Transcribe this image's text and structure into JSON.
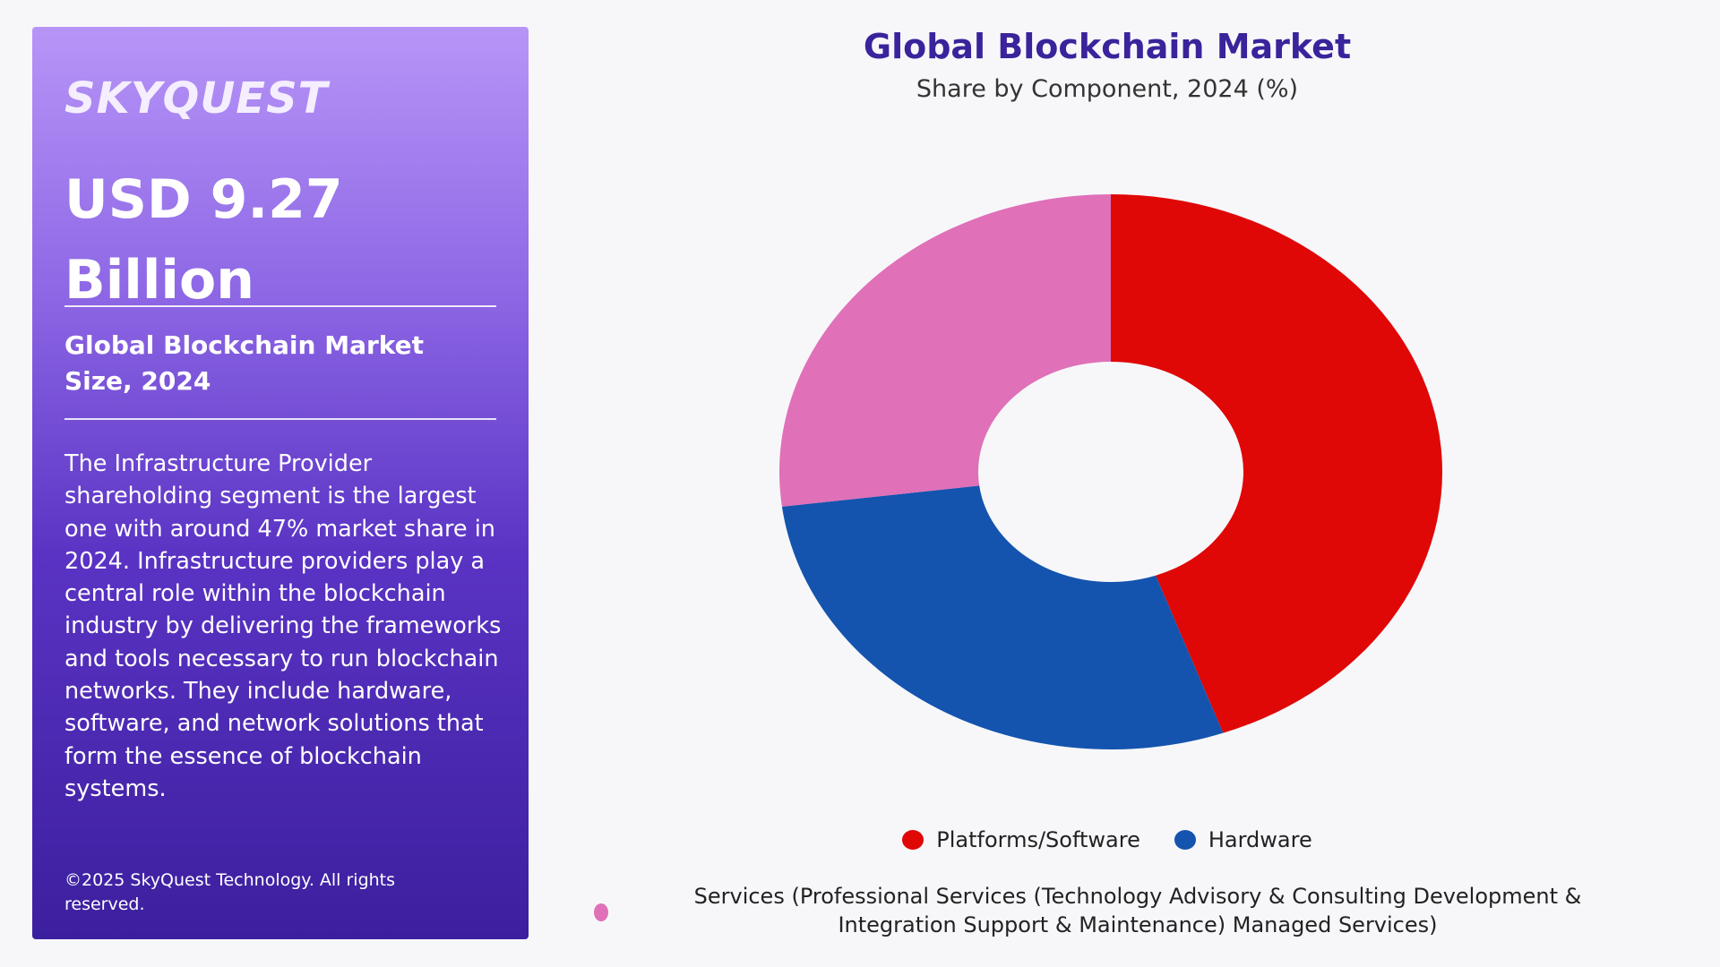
{
  "panel": {
    "logo": "SKYQUEST",
    "headline": "USD 9.27 Billion",
    "subhead": "Global Blockchain Market Size, 2024",
    "description": "The Infrastructure Provider shareholding segment is the largest one with around 47% market share in 2024. Infrastructure providers play a central role within the blockchain industry by delivering the frameworks and tools necessary to run blockchain networks. They include hardware, software, and network solutions that form the essence of blockchain systems.",
    "copyright": "©2025 SkyQuest Technology. All rights reserved."
  },
  "chart_data": {
    "type": "pie",
    "variant": "donut",
    "title": "Global Blockchain Market",
    "subtitle": "Share by Component, 2024 (%)",
    "legend_position": "bottom",
    "series": [
      {
        "name": "Platforms/Software",
        "value": 44.5,
        "color": "#e00707"
      },
      {
        "name": "Hardware",
        "value": 28.5,
        "color": "#1454ae"
      },
      {
        "name": "Services (Professional Services (Technology Advisory & Consulting Development & Integration Support & Maintenance) Managed Services)",
        "value": 27,
        "color": "#e070b8"
      }
    ]
  }
}
